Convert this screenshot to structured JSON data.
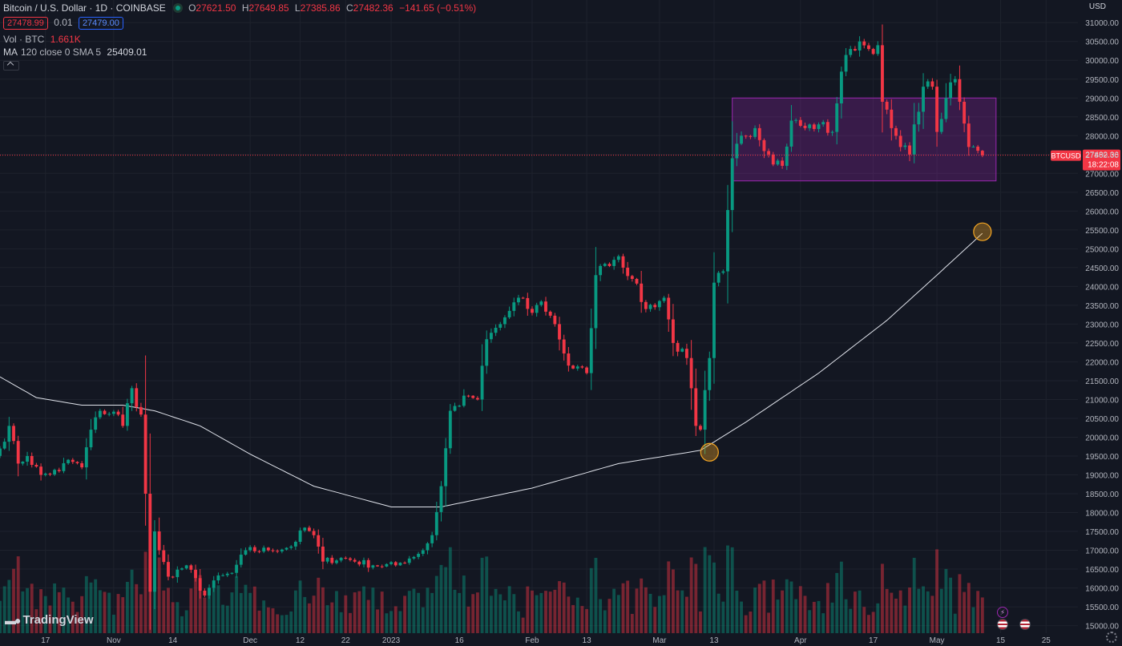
{
  "header": {
    "symbol": "Bitcoin / U.S. Dollar · 1D · COINBASE",
    "ohlc": {
      "o_label": "O",
      "o": "27621.50",
      "h_label": "H",
      "h": "27649.85",
      "l_label": "L",
      "l": "27385.86",
      "c_label": "C",
      "c": "27482.36",
      "change": "−141.65 (−0.51%)"
    },
    "sell": "27478.99",
    "spread": "0.01",
    "buy": "27479.00",
    "vol_label": "Vol · BTC",
    "vol_value": "1.661K",
    "ma_label": "MA",
    "ma_params": "120 close 0 SMA 5",
    "ma_value": "25409.01"
  },
  "currency": "USD",
  "logo": "TradingView",
  "icons": [
    "market-status-icon",
    "collapse-icon",
    "settings-icon",
    "flag-icon",
    "lightning-icon"
  ],
  "chart_data": {
    "type": "candlestick",
    "ylim": [
      14800,
      31600
    ],
    "yticks": [
      15000,
      15500,
      16000,
      16500,
      17000,
      17500,
      18000,
      18500,
      19000,
      19500,
      20000,
      20500,
      21000,
      21500,
      22000,
      22500,
      23000,
      23500,
      24000,
      24500,
      25000,
      25500,
      26000,
      26500,
      27000,
      27500,
      28000,
      28500,
      29000,
      29500,
      30000,
      30500,
      31000
    ],
    "ytick_labels": [
      "15000.00",
      "15500.00",
      "16000.00",
      "16500.00",
      "17000.00",
      "17500.00",
      "18000.00",
      "18500.00",
      "19000.00",
      "19500.00",
      "20000.00",
      "20500.00",
      "21000.00",
      "21500.00",
      "22000.00",
      "22500.00",
      "23000.00",
      "23500.00",
      "24000.00",
      "24500.00",
      "25000.00",
      "25500.00",
      "26000.00",
      "26500.00",
      "27000.00",
      "27500.00",
      "28000.00",
      "28500.00",
      "29000.00",
      "29500.00",
      "30000.00",
      "30500.00",
      "31000.00"
    ],
    "xticks": [
      {
        "label": "17",
        "date": "2022-10-17"
      },
      {
        "label": "Nov",
        "date": "2022-11-01"
      },
      {
        "label": "14",
        "date": "2022-11-14"
      },
      {
        "label": "Dec",
        "date": "2022-12-01"
      },
      {
        "label": "12",
        "date": "2022-12-12"
      },
      {
        "label": "22",
        "date": "2022-12-22"
      },
      {
        "label": "2023",
        "date": "2023-01-01"
      },
      {
        "label": "16",
        "date": "2023-01-16"
      },
      {
        "label": "Feb",
        "date": "2023-02-01"
      },
      {
        "label": "13",
        "date": "2023-02-13"
      },
      {
        "label": "Mar",
        "date": "2023-03-01"
      },
      {
        "label": "13",
        "date": "2023-03-13"
      },
      {
        "label": "Apr",
        "date": "2023-04-01"
      },
      {
        "label": "17",
        "date": "2023-04-17"
      },
      {
        "label": "May",
        "date": "2023-05-01"
      },
      {
        "label": "15",
        "date": "2023-05-15"
      },
      {
        "label": "25",
        "date": "2023-05-25"
      }
    ],
    "xlim": [
      "2022-10-07",
      "2023-06-01"
    ],
    "price_anchors": [
      [
        "2022-10-07",
        19700
      ],
      [
        "2022-10-09",
        20300
      ],
      [
        "2022-10-11",
        19300
      ],
      [
        "2022-10-13",
        19500
      ],
      [
        "2022-10-16",
        19000
      ],
      [
        "2022-10-20",
        19100
      ],
      [
        "2022-10-22",
        19400
      ],
      [
        "2022-10-25",
        19200
      ],
      [
        "2022-10-27",
        20200
      ],
      [
        "2022-10-29",
        20700
      ],
      [
        "2022-11-02",
        20600
      ],
      [
        "2022-11-03",
        20300
      ],
      [
        "2022-11-04",
        20900
      ],
      [
        "2022-11-05",
        21300
      ],
      [
        "2022-11-06",
        20800
      ],
      [
        "2022-11-07",
        20600
      ],
      [
        "2022-11-08",
        18500
      ],
      [
        "2022-11-09",
        15900
      ],
      [
        "2022-11-10",
        17500
      ],
      [
        "2022-11-11",
        17000
      ],
      [
        "2022-11-13",
        16300
      ],
      [
        "2022-11-17",
        16600
      ],
      [
        "2022-11-21",
        15800
      ],
      [
        "2022-11-23",
        16200
      ],
      [
        "2022-11-27",
        16400
      ],
      [
        "2022-11-30",
        17000
      ],
      [
        "2022-12-05",
        17000
      ],
      [
        "2022-12-10",
        17100
      ],
      [
        "2022-12-13",
        17600
      ],
      [
        "2022-12-15",
        17400
      ],
      [
        "2022-12-17",
        16700
      ],
      [
        "2022-12-21",
        16800
      ],
      [
        "2022-12-28",
        16600
      ],
      [
        "2023-01-02",
        16600
      ],
      [
        "2023-01-08",
        17000
      ],
      [
        "2023-01-10",
        17400
      ],
      [
        "2023-01-12",
        18700
      ],
      [
        "2023-01-14",
        20700
      ],
      [
        "2023-01-18",
        21100
      ],
      [
        "2023-01-20",
        21000
      ],
      [
        "2023-01-22",
        22600
      ],
      [
        "2023-01-25",
        23000
      ],
      [
        "2023-01-29",
        23700
      ],
      [
        "2023-02-01",
        23300
      ],
      [
        "2023-02-03",
        23600
      ],
      [
        "2023-02-06",
        23000
      ],
      [
        "2023-02-09",
        21900
      ],
      [
        "2023-02-13",
        21700
      ],
      [
        "2023-02-15",
        24300
      ],
      [
        "2023-02-17",
        24600
      ],
      [
        "2023-02-20",
        24800
      ],
      [
        "2023-02-23",
        24200
      ],
      [
        "2023-02-26",
        23400
      ],
      [
        "2023-03-02",
        23700
      ],
      [
        "2023-03-04",
        22500
      ],
      [
        "2023-03-07",
        22100
      ],
      [
        "2023-03-09",
        20300
      ],
      [
        "2023-03-10",
        20200
      ],
      [
        "2023-03-12",
        22100
      ],
      [
        "2023-03-13",
        24100
      ],
      [
        "2023-03-15",
        24400
      ],
      [
        "2023-03-17",
        27400
      ],
      [
        "2023-03-19",
        28000
      ],
      [
        "2023-03-22",
        28200
      ],
      [
        "2023-03-25",
        27500
      ],
      [
        "2023-03-28",
        27200
      ],
      [
        "2023-03-30",
        28400
      ],
      [
        "2023-04-02",
        28200
      ],
      [
        "2023-04-05",
        28300
      ],
      [
        "2023-04-08",
        28100
      ],
      [
        "2023-04-10",
        29700
      ],
      [
        "2023-04-12",
        30300
      ],
      [
        "2023-04-14",
        30500
      ],
      [
        "2023-04-16",
        30300
      ],
      [
        "2023-04-18",
        30400
      ],
      [
        "2023-04-19",
        28900
      ],
      [
        "2023-04-21",
        28200
      ],
      [
        "2023-04-23",
        27700
      ],
      [
        "2023-04-25",
        27500
      ],
      [
        "2023-04-26",
        28300
      ],
      [
        "2023-04-28",
        29300
      ],
      [
        "2023-04-30",
        29300
      ],
      [
        "2023-05-01",
        28100
      ],
      [
        "2023-05-03",
        29000
      ],
      [
        "2023-05-05",
        29500
      ],
      [
        "2023-05-06",
        28900
      ],
      [
        "2023-05-08",
        27700
      ],
      [
        "2023-05-10",
        27600
      ],
      [
        "2023-05-11",
        27480
      ]
    ],
    "ma": {
      "name": "MA 120 close 0 SMA 5",
      "anchors": [
        [
          "2022-10-07",
          21600
        ],
        [
          "2022-10-15",
          21050
        ],
        [
          "2022-10-25",
          20850
        ],
        [
          "2022-11-03",
          20850
        ],
        [
          "2022-11-10",
          20700
        ],
        [
          "2022-11-20",
          20300
        ],
        [
          "2022-12-01",
          19550
        ],
        [
          "2022-12-15",
          18700
        ],
        [
          "2023-01-01",
          18150
        ],
        [
          "2023-01-12",
          18150
        ],
        [
          "2023-02-01",
          18650
        ],
        [
          "2023-02-20",
          19300
        ],
        [
          "2023-03-10",
          19650
        ],
        [
          "2023-03-20",
          20400
        ],
        [
          "2023-04-05",
          21700
        ],
        [
          "2023-04-20",
          23100
        ],
        [
          "2023-05-01",
          24300
        ],
        [
          "2023-05-11",
          25409
        ]
      ],
      "color": "#e0e3eb"
    },
    "range_box": {
      "from": "2023-03-17",
      "to": "2023-05-14",
      "low": 26800,
      "high": 29000,
      "color": "#9c27b0"
    },
    "circles": [
      {
        "date": "2023-03-12",
        "value": 19600
      },
      {
        "date": "2023-05-11",
        "value": 25450
      }
    ],
    "last_price": {
      "symbol_label": "BTCUSD",
      "price": "27482.36",
      "countdown": "18:22:08",
      "value": 27482.36
    },
    "colors": {
      "up": "#089981",
      "down": "#f23645",
      "grid": "#1e222d",
      "text": "#b2b5be"
    }
  }
}
